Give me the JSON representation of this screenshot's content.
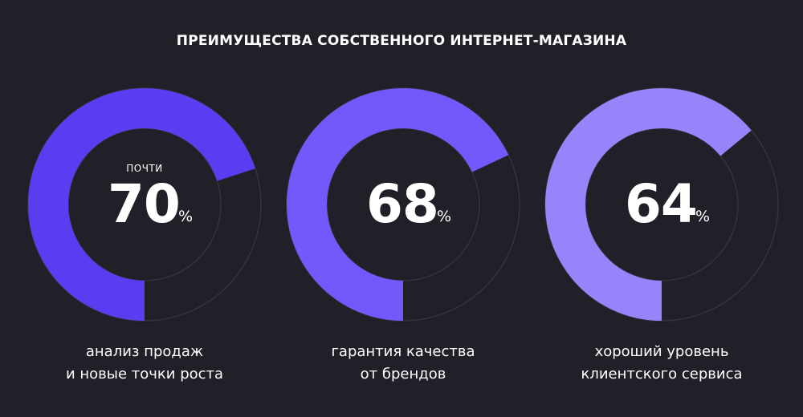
{
  "title": "ПРЕИМУЩЕСТВА СОБСТВЕННОГО ИНТЕРНЕТ-МАГАЗИНА",
  "chart_data": [
    {
      "type": "pie",
      "prefix": "ПОЧТИ",
      "value": 70,
      "unit": "%",
      "caption_lines": [
        "анализ продаж",
        "и новые точки роста"
      ],
      "color": "#5B3CF0"
    },
    {
      "type": "pie",
      "prefix": "",
      "value": 68,
      "unit": "%",
      "caption_lines": [
        "гарантия качества",
        "от брендов"
      ],
      "color": "#7458FB"
    },
    {
      "type": "pie",
      "prefix": "",
      "value": 64,
      "unit": "%",
      "caption_lines": [
        "хороший уровень",
        "клиентского сервиса"
      ],
      "color": "#9783FA"
    }
  ],
  "colors": {
    "background": "#202028",
    "track": "#34343C"
  }
}
